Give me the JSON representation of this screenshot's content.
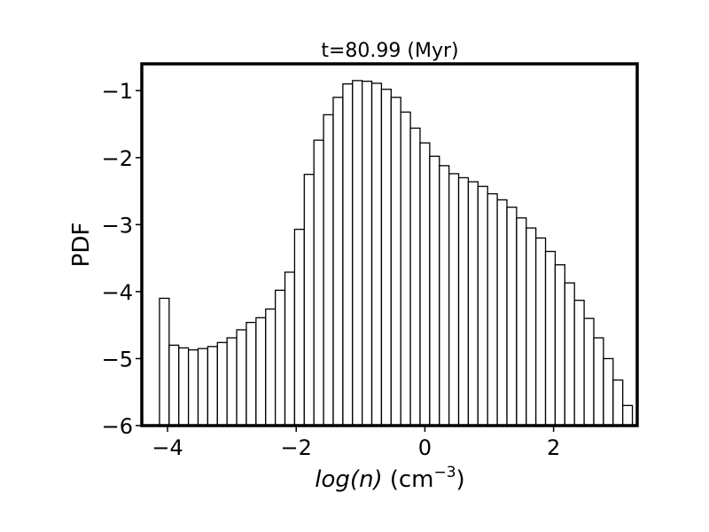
{
  "chart_data": {
    "type": "bar",
    "title": "t=80.99 (Myr)",
    "xlabel": {
      "var_italic": "log(n)",
      "unit_prefix": "(cm",
      "unit_exponent": "−3",
      "unit_suffix": ")"
    },
    "ylabel": "PDF",
    "xlim": [
      -4.4,
      3.3
    ],
    "ylim": [
      -6.0,
      -0.6
    ],
    "bin_width": 0.15,
    "x_ticks": [
      {
        "value": -4,
        "label": "−4"
      },
      {
        "value": -2,
        "label": "−2"
      },
      {
        "value": 0,
        "label": "0"
      },
      {
        "value": 2,
        "label": "2"
      }
    ],
    "y_ticks": [
      {
        "value": -6,
        "label": "−6"
      },
      {
        "value": -5,
        "label": "−5"
      },
      {
        "value": -4,
        "label": "−4"
      },
      {
        "value": -3,
        "label": "−3"
      },
      {
        "value": -2,
        "label": "−2"
      },
      {
        "value": -1,
        "label": "−1"
      }
    ],
    "bins": [
      {
        "x": -4.05,
        "y": -4.1
      },
      {
        "x": -3.9,
        "y": -4.8
      },
      {
        "x": -3.75,
        "y": -4.84
      },
      {
        "x": -3.6,
        "y": -4.87
      },
      {
        "x": -3.45,
        "y": -4.85
      },
      {
        "x": -3.3,
        "y": -4.82
      },
      {
        "x": -3.15,
        "y": -4.76
      },
      {
        "x": -3.0,
        "y": -4.69
      },
      {
        "x": -2.85,
        "y": -4.57
      },
      {
        "x": -2.7,
        "y": -4.46
      },
      {
        "x": -2.55,
        "y": -4.39
      },
      {
        "x": -2.4,
        "y": -4.26
      },
      {
        "x": -2.25,
        "y": -3.98
      },
      {
        "x": -2.1,
        "y": -3.71
      },
      {
        "x": -1.95,
        "y": -3.07
      },
      {
        "x": -1.8,
        "y": -2.25
      },
      {
        "x": -1.65,
        "y": -1.74
      },
      {
        "x": -1.5,
        "y": -1.36
      },
      {
        "x": -1.35,
        "y": -1.1
      },
      {
        "x": -1.2,
        "y": -0.9
      },
      {
        "x": -1.05,
        "y": -0.85
      },
      {
        "x": -0.9,
        "y": -0.86
      },
      {
        "x": -0.75,
        "y": -0.89
      },
      {
        "x": -0.6,
        "y": -0.98
      },
      {
        "x": -0.45,
        "y": -1.1
      },
      {
        "x": -0.3,
        "y": -1.32
      },
      {
        "x": -0.15,
        "y": -1.56
      },
      {
        "x": 0.0,
        "y": -1.78
      },
      {
        "x": 0.15,
        "y": -1.98
      },
      {
        "x": 0.3,
        "y": -2.12
      },
      {
        "x": 0.45,
        "y": -2.24
      },
      {
        "x": 0.6,
        "y": -2.3
      },
      {
        "x": 0.75,
        "y": -2.36
      },
      {
        "x": 0.9,
        "y": -2.43
      },
      {
        "x": 1.05,
        "y": -2.54
      },
      {
        "x": 1.2,
        "y": -2.63
      },
      {
        "x": 1.35,
        "y": -2.74
      },
      {
        "x": 1.5,
        "y": -2.9
      },
      {
        "x": 1.65,
        "y": -3.05
      },
      {
        "x": 1.8,
        "y": -3.2
      },
      {
        "x": 1.95,
        "y": -3.4
      },
      {
        "x": 2.1,
        "y": -3.6
      },
      {
        "x": 2.25,
        "y": -3.87
      },
      {
        "x": 2.4,
        "y": -4.13
      },
      {
        "x": 2.55,
        "y": -4.4
      },
      {
        "x": 2.7,
        "y": -4.69
      },
      {
        "x": 2.85,
        "y": -5.0
      },
      {
        "x": 3.0,
        "y": -5.32
      },
      {
        "x": 3.15,
        "y": -5.7
      }
    ]
  }
}
